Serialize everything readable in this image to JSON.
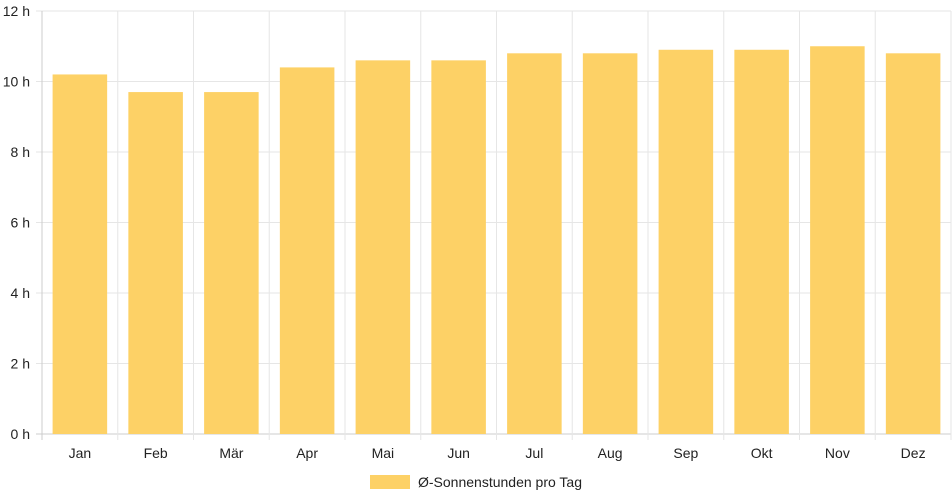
{
  "colors": {
    "bar": "#fdd166",
    "grid": "#e6e6e6",
    "axis": "#cccccc",
    "text": "#222222"
  },
  "chart_data": {
    "type": "bar",
    "categories": [
      "Jan",
      "Feb",
      "Mär",
      "Apr",
      "Mai",
      "Jun",
      "Jul",
      "Aug",
      "Sep",
      "Okt",
      "Nov",
      "Dez"
    ],
    "series": [
      {
        "name": "Ø-Sonnenstunden pro Tag",
        "values": [
          10.2,
          9.7,
          9.7,
          10.4,
          10.6,
          10.6,
          10.8,
          10.8,
          10.9,
          10.9,
          11.0,
          10.8
        ]
      }
    ],
    "y_ticks": [
      "0 h",
      "2 h",
      "4 h",
      "6 h",
      "8 h",
      "10 h",
      "12 h"
    ],
    "ylim": [
      0,
      12
    ],
    "grid": true,
    "legend_position": "bottom"
  }
}
